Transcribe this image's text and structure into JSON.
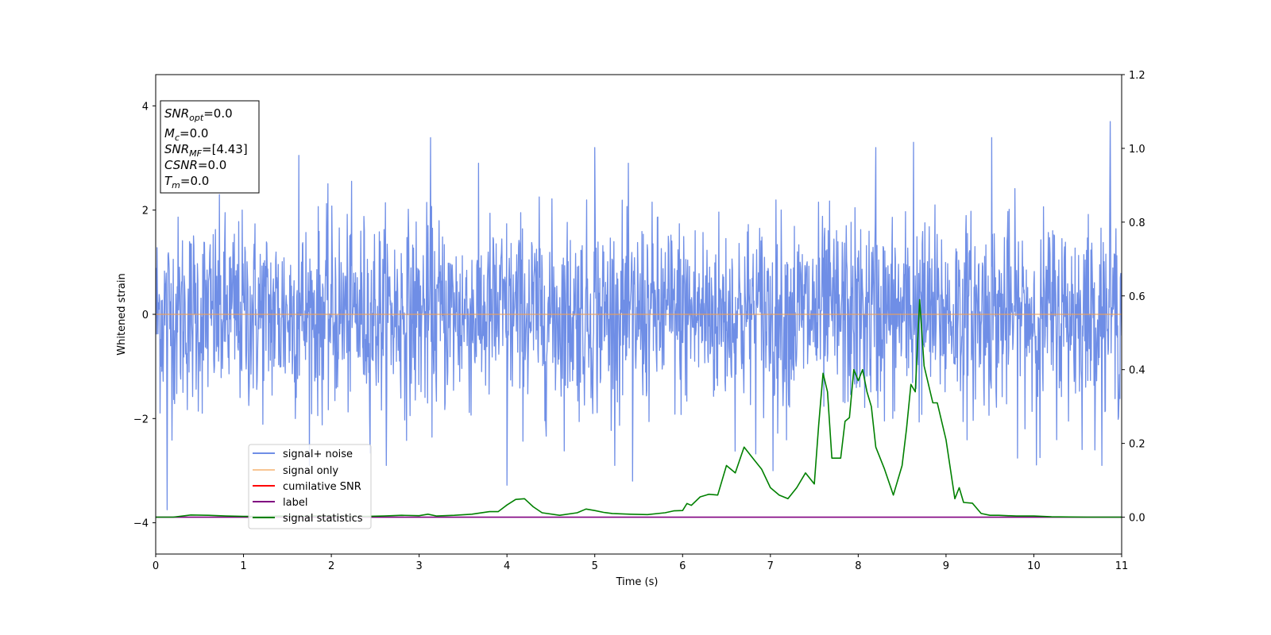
{
  "chart_data": {
    "type": "line",
    "xlabel": "Time (s)",
    "ylabel": "Whitened strain",
    "xlim": [
      0,
      11
    ],
    "ylim_left": [
      -4.6,
      4.6
    ],
    "ylim_right": [
      -0.1,
      1.2
    ],
    "x_ticks": [
      "0",
      "1",
      "2",
      "3",
      "4",
      "5",
      "6",
      "7",
      "8",
      "9",
      "10",
      "11"
    ],
    "y_ticks_left": [
      "4",
      "2",
      "0",
      "−2",
      "−4"
    ],
    "y_ticks_right": [
      "1.2",
      "1.0",
      "0.8",
      "0.6",
      "0.4",
      "0.2",
      "0.0"
    ],
    "grid": false,
    "legend_position": "lower-left",
    "stats_box": {
      "snr_opt": {
        "base": "SNR",
        "sub": "opt",
        "value": "=0.0"
      },
      "mc": {
        "base": "M",
        "sub": "c",
        "value": "=0.0"
      },
      "snr_mf": {
        "base": "SNR",
        "sub": "MF",
        "value": "=[4.43]"
      },
      "csnr": {
        "base": "CSNR",
        "sub": "",
        "value": "=0.0"
      },
      "tm": {
        "base": "T",
        "sub": "m",
        "value": "=0.0"
      }
    },
    "series": [
      {
        "name": "signal+ noise",
        "color": "#6f8ee6",
        "axis": "left",
        "description_kind": "noise",
        "sigma": 0.92,
        "n_points": 2200,
        "extremes": [
          [
            0.13,
            -3.75
          ],
          [
            1.63,
            3.05
          ],
          [
            3.13,
            3.39
          ],
          [
            4.0,
            -3.28
          ],
          [
            5.0,
            3.2
          ],
          [
            5.43,
            -3.2
          ],
          [
            7.03,
            -3.0
          ],
          [
            8.2,
            3.2
          ],
          [
            8.63,
            3.3
          ],
          [
            9.52,
            3.39
          ],
          [
            10.07,
            -2.75
          ],
          [
            10.87,
            3.7
          ]
        ]
      },
      {
        "name": "signal only",
        "color": "#f5a04d",
        "axis": "left",
        "x": [
          0,
          11
        ],
        "y": [
          0,
          0
        ]
      },
      {
        "name": "cumilative SNR",
        "color": "#ff0000",
        "axis": "right",
        "x": [],
        "y": []
      },
      {
        "name": "label",
        "color": "#800080",
        "axis": "right",
        "x": [
          0,
          11
        ],
        "y": [
          0,
          0
        ]
      },
      {
        "name": "signal statistics",
        "color": "#008000",
        "axis": "right",
        "x": [
          0,
          0.2,
          0.4,
          0.6,
          0.8,
          1.0,
          1.2,
          1.4,
          1.6,
          1.8,
          2.0,
          2.2,
          2.4,
          2.6,
          2.8,
          3.0,
          3.1,
          3.2,
          3.4,
          3.6,
          3.8,
          3.9,
          4.0,
          4.1,
          4.2,
          4.3,
          4.4,
          4.6,
          4.8,
          4.9,
          5.0,
          5.1,
          5.2,
          5.4,
          5.6,
          5.8,
          5.9,
          6.0,
          6.05,
          6.1,
          6.2,
          6.3,
          6.4,
          6.5,
          6.6,
          6.7,
          6.8,
          6.9,
          7.0,
          7.1,
          7.2,
          7.3,
          7.4,
          7.5,
          7.55,
          7.6,
          7.65,
          7.7,
          7.8,
          7.85,
          7.9,
          7.95,
          8.0,
          8.05,
          8.1,
          8.15,
          8.2,
          8.3,
          8.4,
          8.5,
          8.55,
          8.6,
          8.65,
          8.7,
          8.75,
          8.8,
          8.85,
          8.9,
          9.0,
          9.1,
          9.15,
          9.2,
          9.3,
          9.4,
          9.5,
          9.6,
          9.8,
          10.0,
          10.2,
          10.6,
          11.0
        ],
        "y": [
          0.0,
          0.0,
          0.006,
          0.005,
          0.003,
          0.002,
          0.002,
          0.003,
          0.002,
          0.003,
          0.003,
          0.002,
          0.002,
          0.003,
          0.005,
          0.004,
          0.008,
          0.003,
          0.005,
          0.008,
          0.015,
          0.015,
          0.033,
          0.048,
          0.05,
          0.028,
          0.012,
          0.005,
          0.012,
          0.022,
          0.018,
          0.013,
          0.01,
          0.008,
          0.007,
          0.012,
          0.017,
          0.018,
          0.037,
          0.032,
          0.055,
          0.062,
          0.06,
          0.14,
          0.12,
          0.19,
          0.16,
          0.13,
          0.08,
          0.06,
          0.05,
          0.08,
          0.12,
          0.09,
          0.25,
          0.39,
          0.34,
          0.16,
          0.16,
          0.26,
          0.27,
          0.4,
          0.37,
          0.4,
          0.34,
          0.3,
          0.19,
          0.13,
          0.06,
          0.14,
          0.24,
          0.36,
          0.34,
          0.59,
          0.41,
          0.36,
          0.31,
          0.31,
          0.21,
          0.05,
          0.08,
          0.04,
          0.038,
          0.01,
          0.005,
          0.005,
          0.003,
          0.003,
          0.001,
          0.0,
          0.0
        ]
      }
    ]
  }
}
